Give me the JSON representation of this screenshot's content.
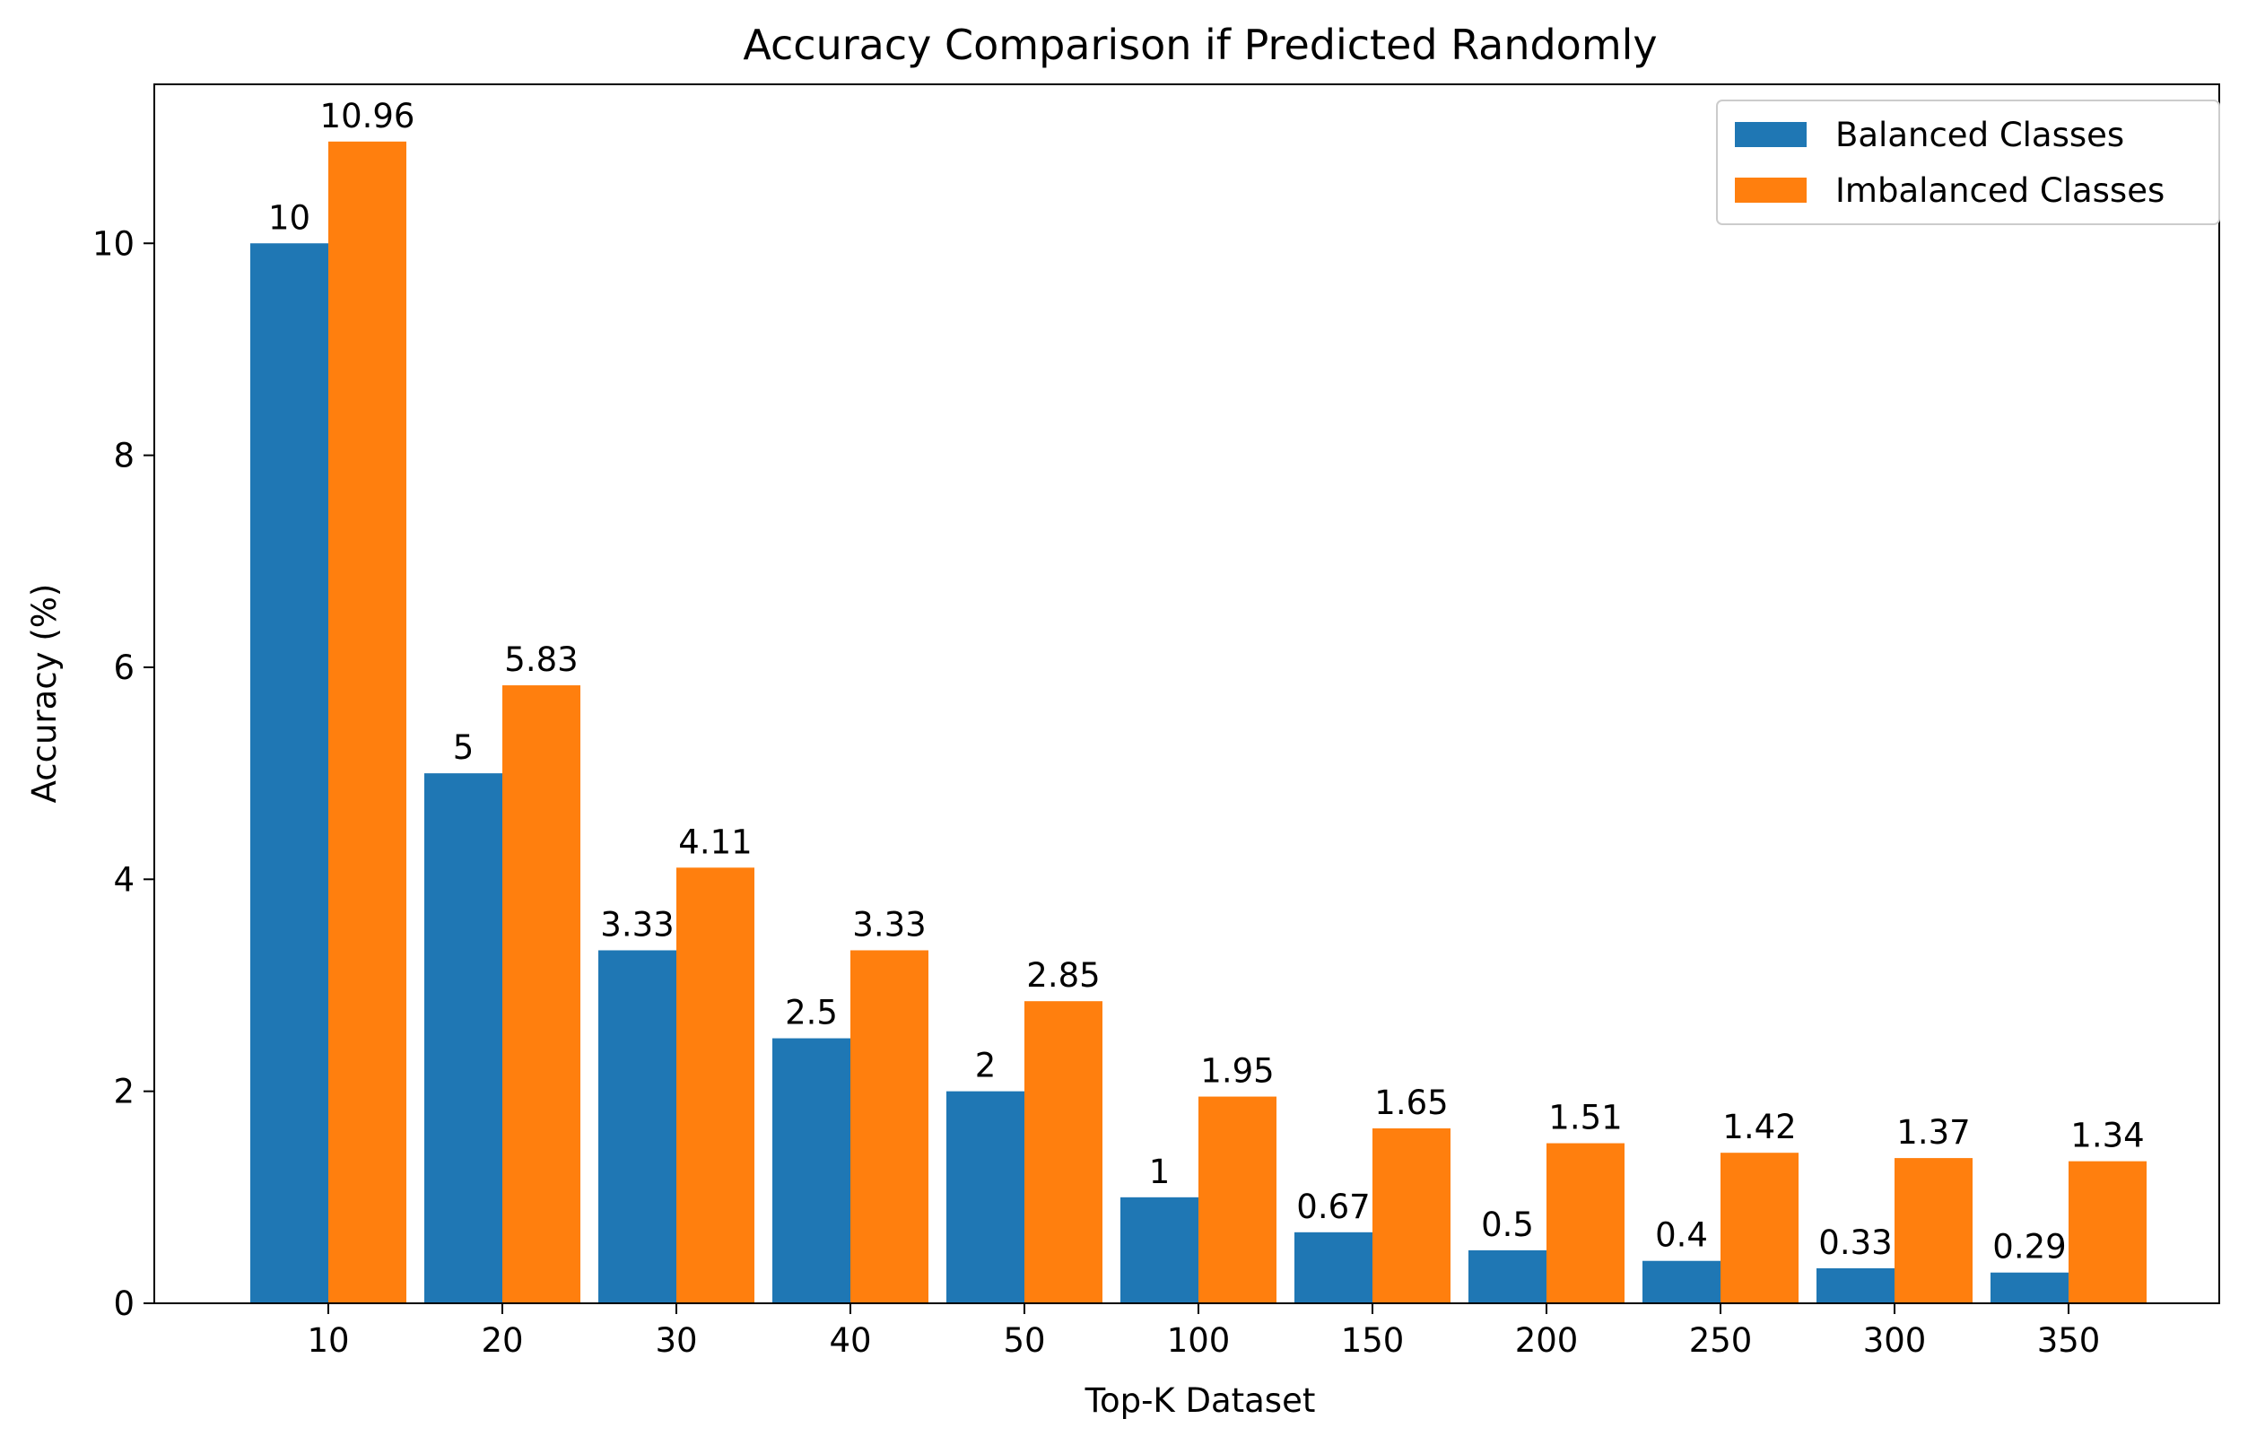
{
  "chart_data": {
    "type": "bar",
    "title": "Accuracy Comparison if Predicted Randomly",
    "xlabel": "Top-K Dataset",
    "ylabel": "Accuracy (%)",
    "categories": [
      "10",
      "20",
      "30",
      "40",
      "50",
      "100",
      "150",
      "200",
      "250",
      "300",
      "350"
    ],
    "series": [
      {
        "name": "Balanced Classes",
        "color": "#1f77b4",
        "values": [
          10,
          5,
          3.33,
          2.5,
          2,
          1,
          0.67,
          0.5,
          0.4,
          0.33,
          0.29
        ],
        "labels": [
          "10",
          "5",
          "3.33",
          "2.5",
          "2",
          "1",
          "0.67",
          "0.5",
          "0.4",
          "0.33",
          "0.29"
        ]
      },
      {
        "name": "Imbalanced Classes",
        "color": "#ff7f0e",
        "values": [
          10.96,
          5.83,
          4.11,
          3.33,
          2.85,
          1.95,
          1.65,
          1.51,
          1.42,
          1.37,
          1.34
        ],
        "labels": [
          "10.96",
          "5.83",
          "4.11",
          "3.33",
          "2.85",
          "1.95",
          "1.65",
          "1.51",
          "1.42",
          "1.37",
          "1.34"
        ]
      }
    ],
    "yticks": [
      "0",
      "2",
      "4",
      "6",
      "8",
      "10"
    ],
    "ylim": [
      0,
      11.5
    ],
    "grid": false,
    "legend_position": "top-right"
  }
}
